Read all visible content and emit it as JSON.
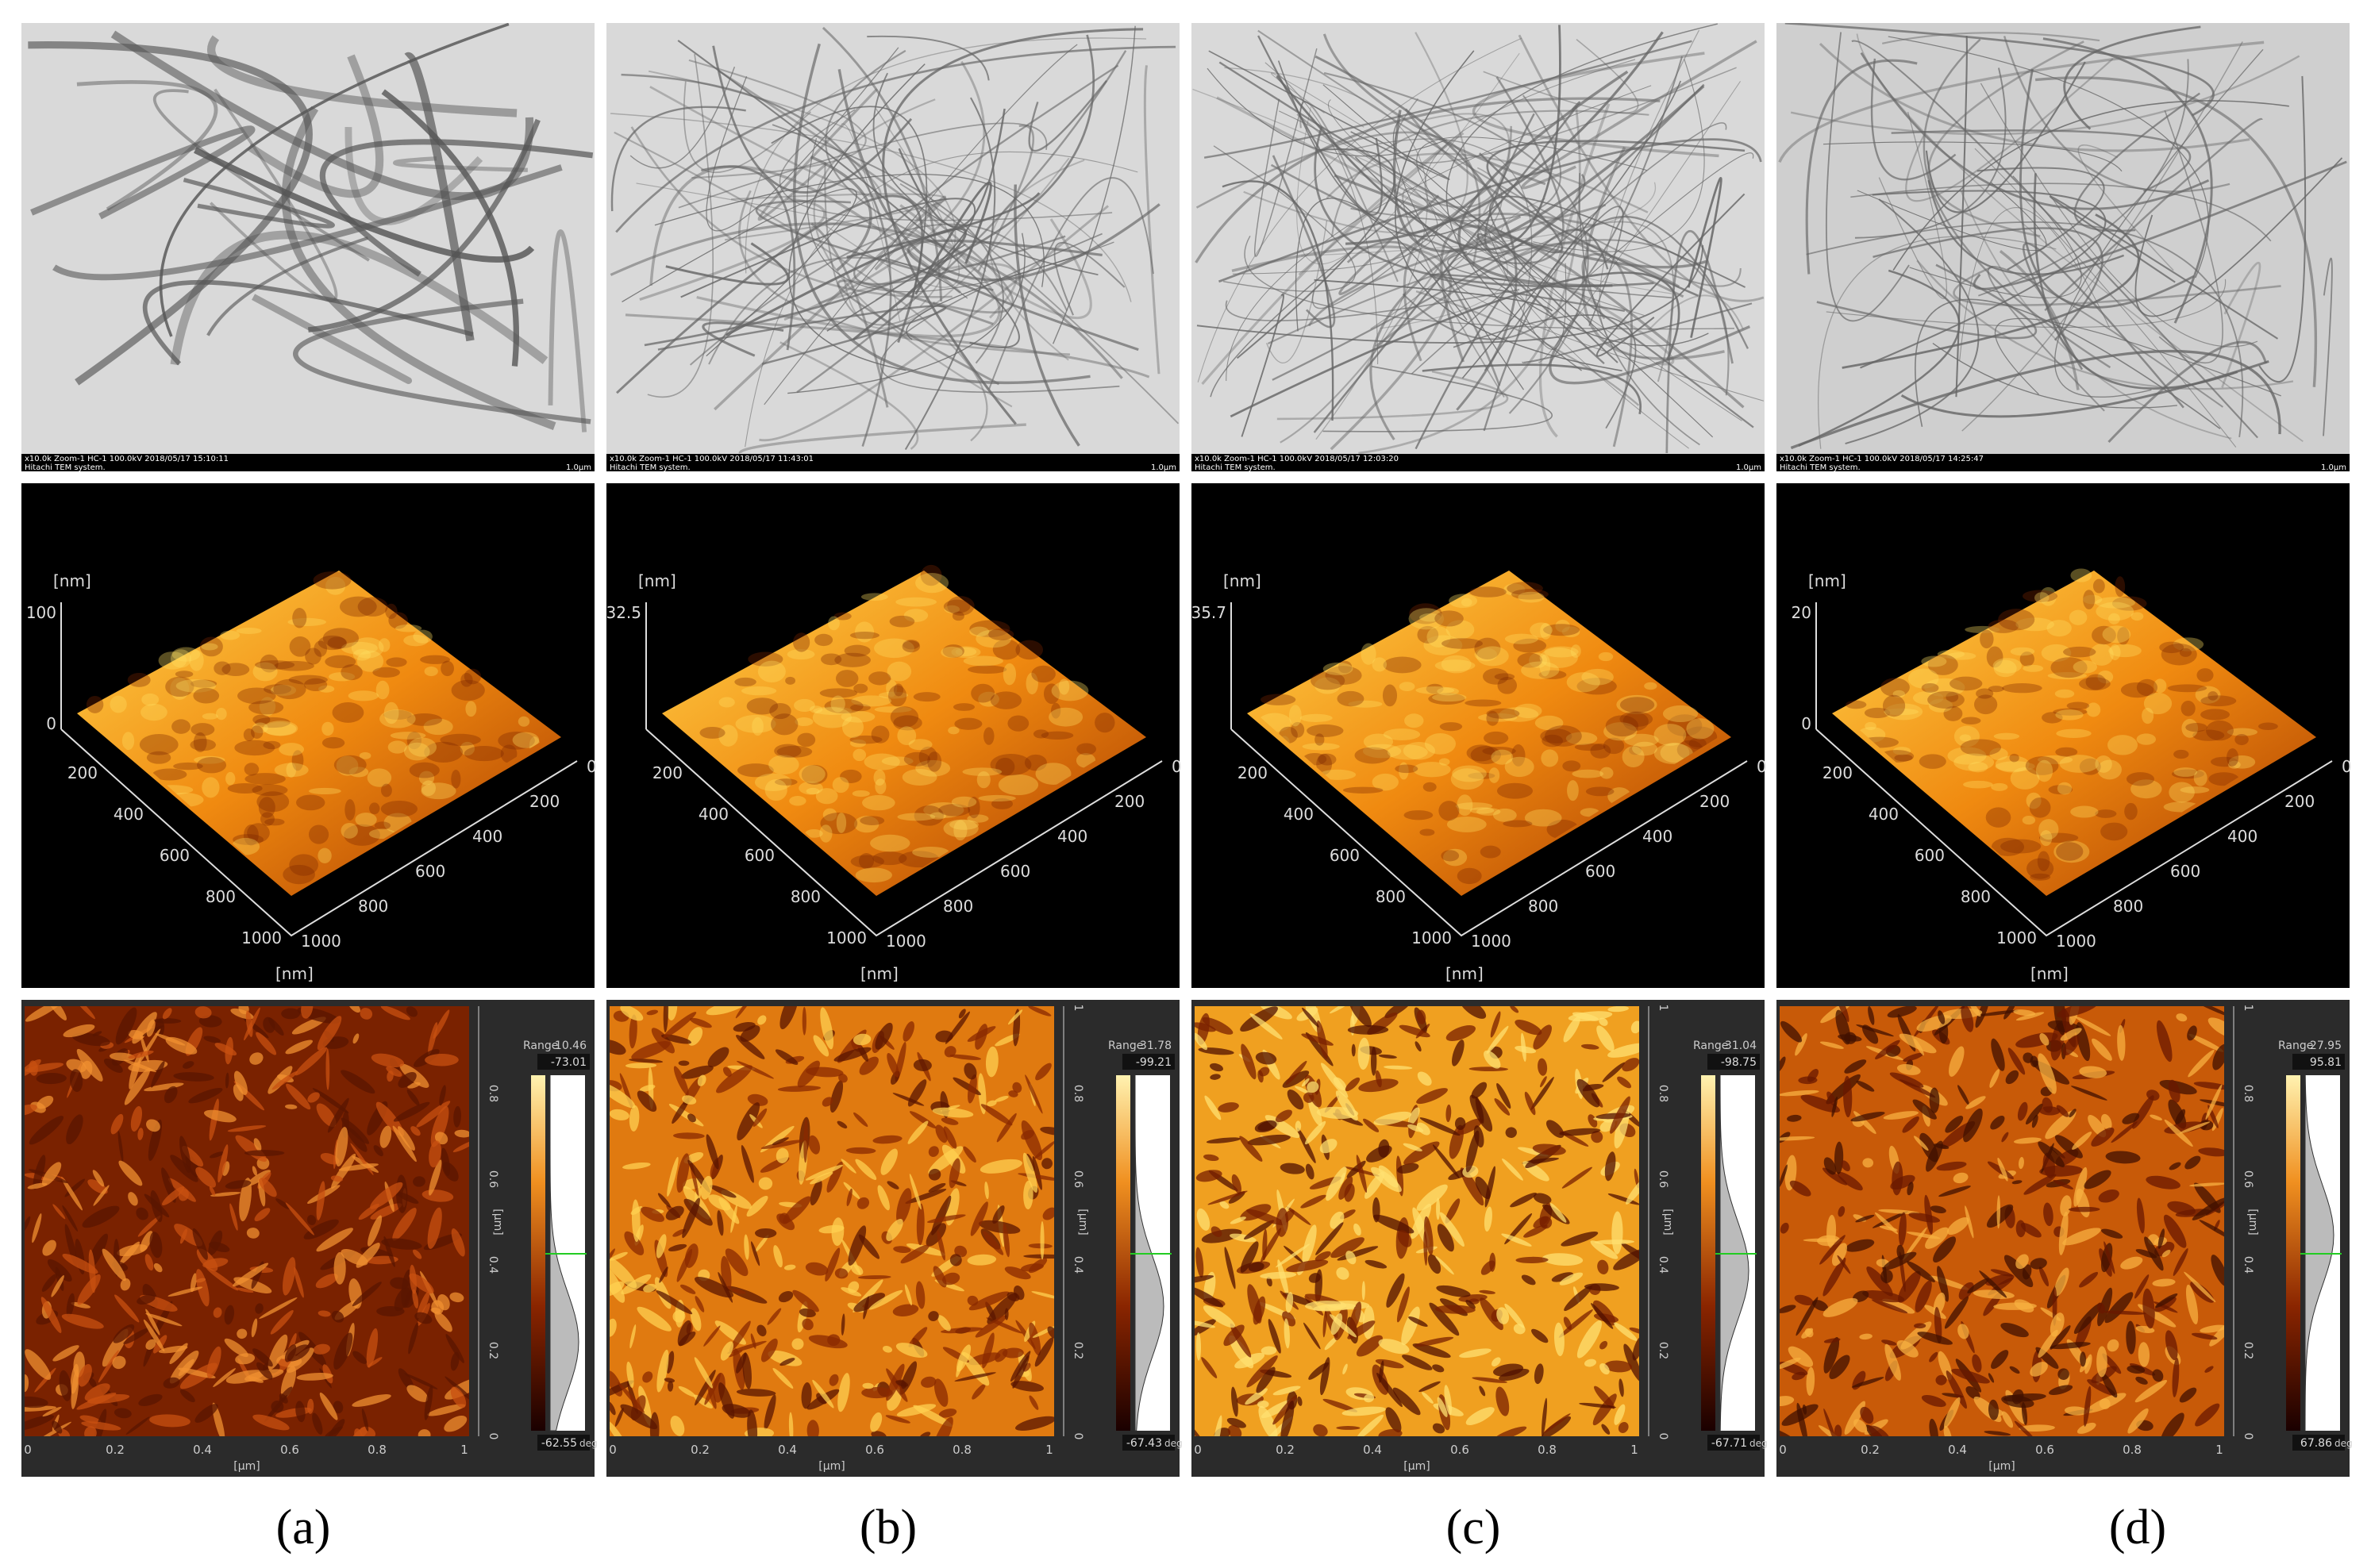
{
  "columns": [
    {
      "label": "(a)",
      "tem": {
        "info": "x10.0k Zoom-1 HC-1 100.0kV 2018/05/17 15:10:11",
        "system": "Hitachi TEM system.",
        "scale": "1.0μm"
      },
      "afm3d": {
        "z_unit": "[nm]",
        "z_ticks": [
          "100",
          "0"
        ],
        "left_ticks": [
          "200",
          "400",
          "600",
          "800",
          "1000"
        ],
        "right_ticks": [
          "0",
          "200",
          "400",
          "600",
          "800",
          "1000"
        ],
        "xy_unit": "[nm]"
      },
      "phase": {
        "range_label": "Range",
        "range": "10.46",
        "max": "-73.01",
        "min": "-62.55",
        "unit": "deg",
        "axis_unit": "[μm]",
        "x_ticks": [
          "0",
          "0.2",
          "0.4",
          "0.6",
          "0.8",
          "1"
        ],
        "y_ticks": [
          "0",
          "0.2",
          "0.4",
          "0.6",
          "0.8"
        ]
      }
    },
    {
      "label": "(b)",
      "tem": {
        "info": "x10.0k Zoom-1 HC-1 100.0kV 2018/05/17 11:43:01",
        "system": "Hitachi TEM system.",
        "scale": "1.0μm"
      },
      "afm3d": {
        "z_unit": "[nm]",
        "z_ticks": [
          "32.5"
        ],
        "left_ticks": [
          "200",
          "400",
          "600",
          "800",
          "1000"
        ],
        "right_ticks": [
          "0",
          "200",
          "400",
          "600",
          "800",
          "1000"
        ],
        "xy_unit": "[nm]"
      },
      "phase": {
        "range_label": "Range",
        "range": "31.78",
        "max": "-99.21",
        "min": "-67.43",
        "unit": "deg",
        "axis_unit": "[μm]",
        "x_ticks": [
          "0",
          "0.2",
          "0.4",
          "0.6",
          "0.8",
          "1"
        ],
        "y_ticks": [
          "0",
          "0.2",
          "0.4",
          "0.6",
          "0.8",
          "1"
        ]
      }
    },
    {
      "label": "(c)",
      "tem": {
        "info": "x10.0k Zoom-1 HC-1 100.0kV 2018/05/17 12:03:20",
        "system": "Hitachi TEM system.",
        "scale": "1.0μm"
      },
      "afm3d": {
        "z_unit": "[nm]",
        "z_ticks": [
          "35.7"
        ],
        "left_ticks": [
          "200",
          "400",
          "600",
          "800",
          "1000"
        ],
        "right_ticks": [
          "0",
          "200",
          "400",
          "600",
          "800",
          "1000"
        ],
        "xy_unit": "[nm]"
      },
      "phase": {
        "range_label": "Range",
        "range": "31.04",
        "max": "-98.75",
        "min": "-67.71",
        "unit": "deg",
        "axis_unit": "[μm]",
        "x_ticks": [
          "0",
          "0.2",
          "0.4",
          "0.6",
          "0.8",
          "1"
        ],
        "y_ticks": [
          "0",
          "0.2",
          "0.4",
          "0.6",
          "0.8",
          "1"
        ]
      }
    },
    {
      "label": "(d)",
      "tem": {
        "info": "x10.0k Zoom-1 HC-1 100.0kV 2018/05/17 14:25:47",
        "system": "Hitachi TEM system.",
        "scale": "1.0μm"
      },
      "afm3d": {
        "z_unit": "[nm]",
        "z_ticks": [
          "20",
          "0"
        ],
        "left_ticks": [
          "200",
          "400",
          "600",
          "800",
          "1000"
        ],
        "right_ticks": [
          "0",
          "200",
          "400",
          "600",
          "800",
          "1000"
        ],
        "xy_unit": "[nm]"
      },
      "phase": {
        "range_label": "Range",
        "range": "27.95",
        "max": "95.81",
        "min": "67.86",
        "unit": "deg",
        "axis_unit": "[μm]",
        "x_ticks": [
          "0",
          "0.2",
          "0.4",
          "0.6",
          "0.8",
          "1"
        ],
        "y_ticks": [
          "0",
          "0.2",
          "0.4",
          "0.6",
          "0.8",
          "1"
        ]
      }
    }
  ]
}
